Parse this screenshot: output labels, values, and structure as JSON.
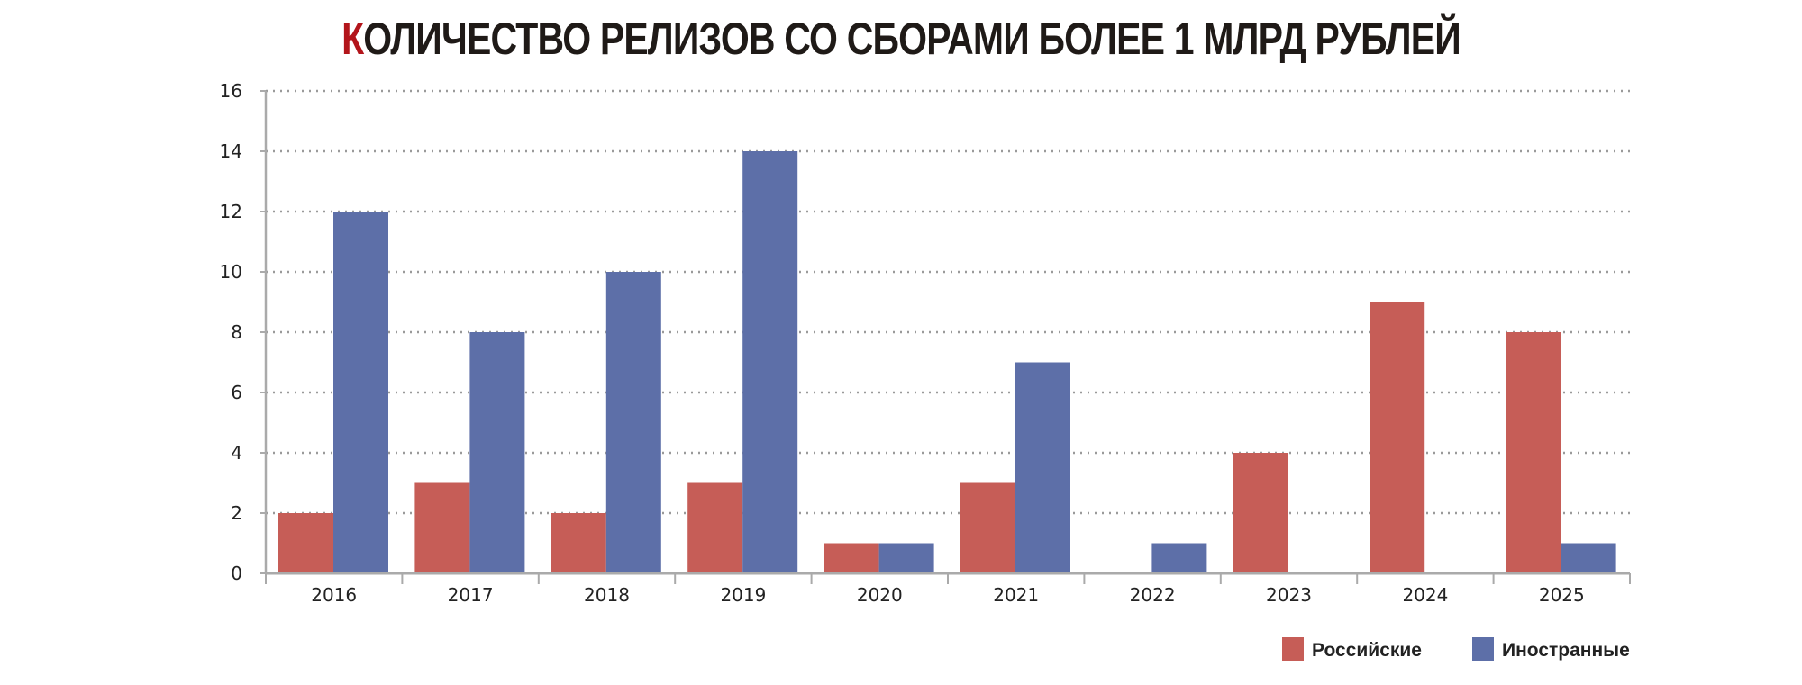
{
  "chart_data": {
    "type": "bar",
    "title": "КОЛИЧЕСТВО РЕЛИЗОВ СО СБОРАМИ БОЛЕЕ 1 МЛРД РУБЛЕЙ",
    "title_first_letter": "К",
    "title_rest": "ОЛИЧЕСТВО РЕЛИЗОВ СО СБОРАМИ БОЛЕЕ 1 МЛРД РУБЛЕЙ",
    "xlabel": "",
    "ylabel": "",
    "ylim": [
      0,
      16
    ],
    "yticks": [
      0,
      2,
      4,
      6,
      8,
      10,
      12,
      14,
      16
    ],
    "grid": true,
    "legend_position": "bottom-right",
    "categories": [
      "2016",
      "2017",
      "2018",
      "2019",
      "2020",
      "2021",
      "2022",
      "2023",
      "2024",
      "2025"
    ],
    "series": [
      {
        "name": "Российские",
        "color": "#c65d57",
        "values": [
          2,
          3,
          2,
          3,
          1,
          3,
          0,
          4,
          9,
          8
        ]
      },
      {
        "name": "Иностранные",
        "color": "#5d6fa8",
        "values": [
          12,
          8,
          10,
          14,
          1,
          7,
          1,
          0,
          0,
          1
        ]
      }
    ],
    "title_accent_color": "#b3151b"
  }
}
